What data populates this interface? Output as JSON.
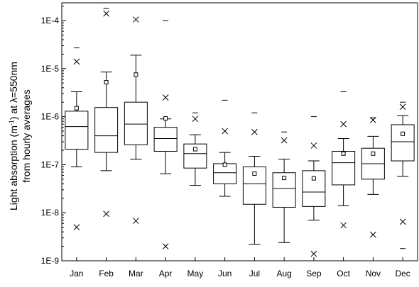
{
  "chart_data": {
    "type": "box",
    "title": "",
    "xlabel": "",
    "ylabel_lines": [
      "Light absorption (m",
      "-1",
      ") at λ=550nm",
      "from hourly averages"
    ],
    "yscale": "log",
    "ylim": [
      1e-09,
      0.0002
    ],
    "yticks": [
      {
        "value": 1e-09,
        "label": "1E-9"
      },
      {
        "value": 1e-08,
        "label": "1E-8"
      },
      {
        "value": 1e-07,
        "label": "1E-7"
      },
      {
        "value": 1e-06,
        "label": "1E-6"
      },
      {
        "value": 1e-05,
        "label": "1E-5"
      },
      {
        "value": 0.0001,
        "label": "1E-4"
      }
    ],
    "categories": [
      "Jan",
      "Feb",
      "Mar",
      "Apr",
      "May",
      "Jun",
      "Jul",
      "Aug",
      "Sep",
      "Oct",
      "Nov",
      "Dec"
    ],
    "boxes": [
      {
        "q1": 2.1e-07,
        "median": 6.2e-07,
        "q3": 1.3e-06,
        "whisker_low": 9e-08,
        "whisker_high": 3.3e-06,
        "mean": 1.5e-06,
        "p1": 5e-09,
        "p99": 1.4e-05,
        "min": null,
        "max": 2.7e-05
      },
      {
        "q1": 1.8e-07,
        "median": 4e-07,
        "q3": 1.55e-06,
        "whisker_low": 7.5e-08,
        "whisker_high": 8.5e-06,
        "mean": 5.2e-06,
        "p1": 9.5e-09,
        "p99": 0.00014,
        "min": null,
        "max": 0.00018
      },
      {
        "q1": 2.6e-07,
        "median": 7e-07,
        "q3": 2e-06,
        "whisker_low": 1.3e-07,
        "whisker_high": 1.9e-05,
        "mean": 7.5e-06,
        "p1": 6.8e-09,
        "p99": 0.000105,
        "min": null,
        "max": null
      },
      {
        "q1": 1.9e-07,
        "median": 3.5e-07,
        "q3": 6e-07,
        "whisker_low": 6.5e-08,
        "whisker_high": 9e-07,
        "mean": 9.2e-07,
        "p1": 2e-09,
        "p99": 2.5e-06,
        "min": null,
        "max": 0.0001
      },
      {
        "q1": 8.5e-08,
        "median": 1.7e-07,
        "q3": 2.7e-07,
        "whisker_low": 3.7e-08,
        "whisker_high": 4.2e-07,
        "mean": 2.1e-07,
        "p1": null,
        "p99": 9e-07,
        "min": null,
        "max": 1.2e-06
      },
      {
        "q1": 4e-08,
        "median": 6.8e-08,
        "q3": 1.05e-07,
        "whisker_low": 2.2e-08,
        "whisker_high": 1.8e-07,
        "mean": 1e-07,
        "p1": null,
        "p99": 5e-07,
        "min": null,
        "max": 2.2e-06
      },
      {
        "q1": 1.5e-08,
        "median": 4e-08,
        "q3": 9e-08,
        "whisker_low": 2.2e-09,
        "whisker_high": 1.5e-07,
        "mean": 6.5e-08,
        "p1": null,
        "p99": 4.8e-07,
        "min": null,
        "max": 1.2e-06
      },
      {
        "q1": 1.3e-08,
        "median": 3.2e-08,
        "q3": 6.8e-08,
        "whisker_low": 2.4e-09,
        "whisker_high": 1.3e-07,
        "mean": 5.3e-08,
        "p1": null,
        "p99": 3.2e-07,
        "min": null,
        "max": 4.8e-07
      },
      {
        "q1": 1.35e-08,
        "median": 2.7e-08,
        "q3": 7.5e-08,
        "whisker_low": 7e-09,
        "whisker_high": 1.2e-07,
        "mean": 5.2e-08,
        "p1": 1.4e-09,
        "p99": 2.5e-07,
        "min": null,
        "max": 1e-06
      },
      {
        "q1": 3.8e-08,
        "median": 1.1e-07,
        "q3": 1.9e-07,
        "whisker_low": 1.4e-08,
        "whisker_high": 3.5e-07,
        "mean": 1.7e-07,
        "p1": 5.5e-09,
        "p99": 7e-07,
        "min": null,
        "max": 3.3e-06
      },
      {
        "q1": 5e-08,
        "median": 1.05e-07,
        "q3": 2.2e-07,
        "whisker_low": 2.4e-08,
        "whisker_high": 3.9e-07,
        "mean": 1.7e-07,
        "p1": 3.5e-09,
        "p99": 8.5e-07,
        "min": null,
        "max": 9.5e-07
      },
      {
        "q1": 1.2e-07,
        "median": 3e-07,
        "q3": 6.8e-07,
        "whisker_low": 5.7e-08,
        "whisker_high": 1.05e-06,
        "mean": 4.4e-07,
        "p1": 6.5e-09,
        "p99": 1.6e-06,
        "min": 1.8e-09,
        "max": 2e-06
      }
    ]
  }
}
